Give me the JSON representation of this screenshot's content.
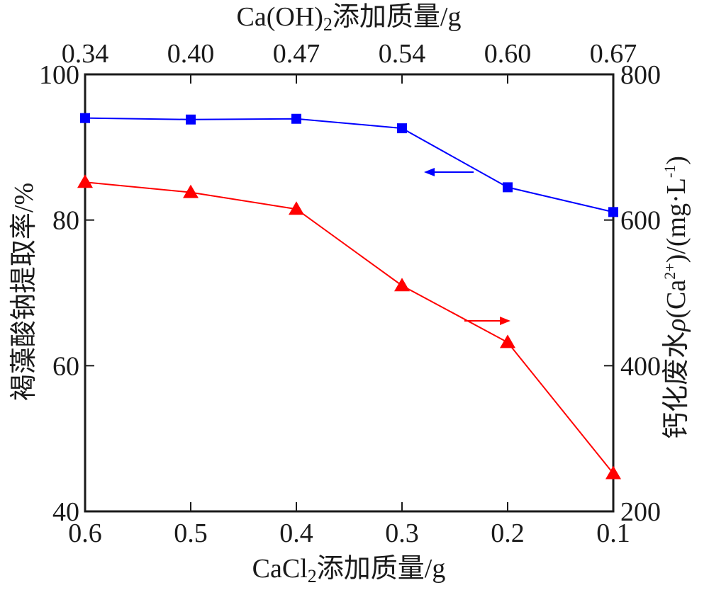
{
  "chart_data": {
    "type": "line",
    "x_bottom": {
      "label_main": "CaCl",
      "label_sub": "2",
      "label_rest": "添加质量/g",
      "ticks": [
        0.6,
        0.5,
        0.4,
        0.3,
        0.2,
        0.1
      ],
      "tick_labels": [
        "0.6",
        "0.5",
        "0.4",
        "0.3",
        "0.2",
        "0.1"
      ],
      "range": [
        0.6,
        0.1
      ]
    },
    "x_top": {
      "label_main": "Ca(OH)",
      "label_sub": "2",
      "label_rest": "添加质量/g",
      "tick_labels": [
        "0.34",
        "0.40",
        "0.47",
        "0.54",
        "0.60",
        "0.67"
      ]
    },
    "y_left": {
      "label": "褐藻酸钠提取率/%",
      "range": [
        40,
        100
      ],
      "ticks": [
        40,
        60,
        80,
        100
      ],
      "tick_labels": [
        "40",
        "60",
        "80",
        "100"
      ]
    },
    "y_right": {
      "label_main": "钙化废水",
      "label_rho": "ρ",
      "label_open": "(Ca",
      "label_sup": "2+",
      "label_mid": ")/(mg·L",
      "label_sup2": "-1",
      "label_close": ")",
      "range": [
        200,
        800
      ],
      "ticks": [
        200,
        400,
        600,
        800
      ],
      "tick_labels": [
        "200",
        "400",
        "600",
        "800"
      ]
    },
    "series": [
      {
        "axis": "left",
        "color": "#0000ff",
        "marker": "square",
        "x": [
          0.6,
          0.5,
          0.4,
          0.3,
          0.2,
          0.1
        ],
        "values": [
          94.0,
          93.8,
          93.9,
          92.6,
          84.5,
          81.1
        ]
      },
      {
        "axis": "right",
        "color": "#ff0000",
        "marker": "triangle",
        "x": [
          0.6,
          0.5,
          0.4,
          0.3,
          0.2,
          0.1
        ],
        "values": [
          652,
          638,
          615,
          510,
          432,
          252
        ]
      }
    ]
  }
}
